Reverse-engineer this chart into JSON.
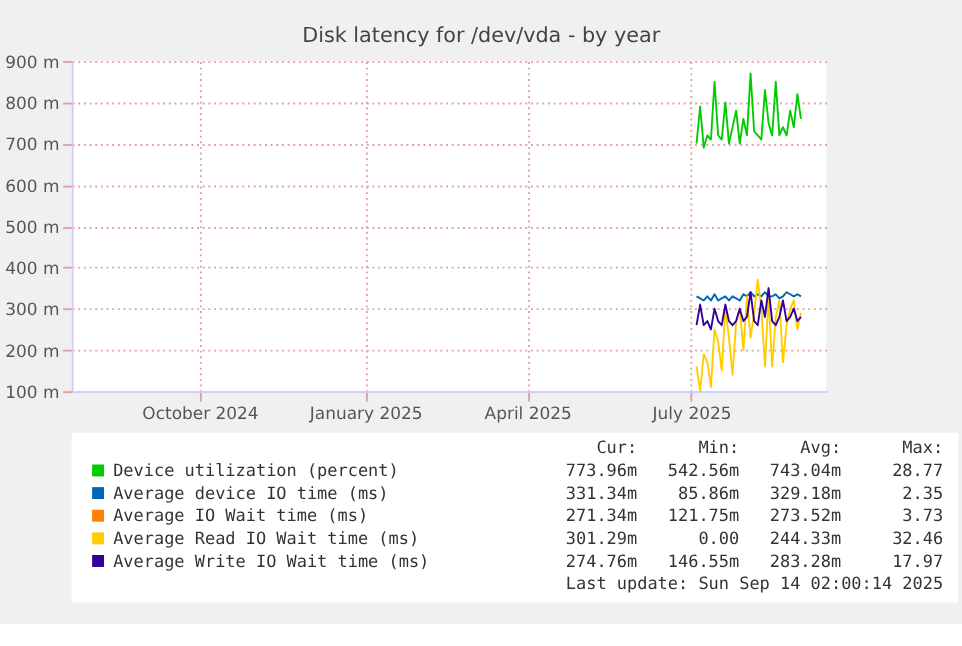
{
  "chart_data": {
    "type": "line",
    "title": "Disk latency for /dev/vda - by year",
    "x": [
      "2025-07-04",
      "2025-07-06",
      "2025-07-08",
      "2025-07-10",
      "2025-07-12",
      "2025-07-14",
      "2025-07-16",
      "2025-07-18",
      "2025-07-20",
      "2025-07-22",
      "2025-07-24",
      "2025-07-26",
      "2025-07-28",
      "2025-07-30",
      "2025-08-01",
      "2025-08-03",
      "2025-08-05",
      "2025-08-07",
      "2025-08-09",
      "2025-08-11",
      "2025-08-13",
      "2025-08-15",
      "2025-08-17",
      "2025-08-19",
      "2025-08-21",
      "2025-08-23",
      "2025-08-25",
      "2025-08-27",
      "2025-08-29",
      "2025-08-31"
    ],
    "series": [
      {
        "name": "Device utilization (percent)",
        "color": "#00cc00",
        "values": [
          700,
          790,
          690,
          720,
          710,
          850,
          720,
          710,
          800,
          700,
          740,
          780,
          700,
          760,
          720,
          870,
          730,
          720,
          710,
          830,
          750,
          720,
          850,
          720,
          740,
          720,
          780,
          740,
          820,
          760
        ]
      },
      {
        "name": "Average device IO time (ms)",
        "color": "#0066b3",
        "values": [
          330,
          325,
          320,
          330,
          320,
          335,
          320,
          325,
          330,
          320,
          330,
          325,
          320,
          335,
          330,
          340,
          330,
          335,
          330,
          340,
          330,
          330,
          335,
          325,
          330,
          340,
          335,
          330,
          335,
          330
        ]
      },
      {
        "name": "Average IO Wait time (ms)",
        "color": "#ff8000",
        "values": [
          null,
          null,
          null,
          null,
          null,
          null,
          null,
          null,
          null,
          null,
          null,
          null,
          null,
          null,
          null,
          null,
          null,
          null,
          null,
          null,
          null,
          null,
          null,
          null,
          null,
          null,
          null,
          null,
          null,
          null
        ]
      },
      {
        "name": "Average Read IO Wait time (ms)",
        "color": "#ffcc00",
        "values": [
          160,
          100,
          190,
          170,
          110,
          250,
          220,
          150,
          300,
          230,
          140,
          270,
          300,
          200,
          330,
          230,
          290,
          370,
          300,
          160,
          330,
          160,
          280,
          320,
          170,
          260,
          300,
          320,
          250,
          290
        ]
      },
      {
        "name": "Average Write IO Wait time (ms)",
        "color": "#330099",
        "values": [
          260,
          310,
          260,
          270,
          250,
          300,
          270,
          260,
          310,
          270,
          260,
          270,
          300,
          270,
          280,
          340,
          270,
          260,
          320,
          280,
          350,
          270,
          260,
          280,
          320,
          270,
          280,
          300,
          270,
          280
        ]
      }
    ],
    "xlim": [
      "2024-07-22",
      "2025-09-14"
    ],
    "xticks": [
      {
        "value": "2024-10-01",
        "label": "October 2024"
      },
      {
        "value": "2025-01-01",
        "label": "January 2025"
      },
      {
        "value": "2025-04-01",
        "label": "April 2025"
      },
      {
        "value": "2025-07-01",
        "label": "July 2025"
      }
    ],
    "ylim": [
      100,
      900
    ],
    "yticks": [
      {
        "value": 100,
        "label": "100 m"
      },
      {
        "value": 200,
        "label": "200 m"
      },
      {
        "value": 300,
        "label": "300 m"
      },
      {
        "value": 400,
        "label": "400 m"
      },
      {
        "value": 500,
        "label": "500 m"
      },
      {
        "value": 600,
        "label": "600 m"
      },
      {
        "value": 700,
        "label": "700 m"
      },
      {
        "value": 800,
        "label": "800 m"
      },
      {
        "value": 900,
        "label": "900 m"
      }
    ],
    "grid": true,
    "legend": "bottom",
    "line_style": "solid",
    "annotations": [
      "Cur:      Min:      Avg:      Max:",
      "773.96m   542.56m   743.04m     28.77",
      "331.34m    85.86m   329.18m      2.35",
      "271.34m   121.75m   273.52m      3.73",
      "301.29m      0.00   244.33m     32.46",
      "274.76m   146.55m   283.28m     17.97",
      "Last update: Sun Sep 14 02:00:14 2025"
    ]
  }
}
